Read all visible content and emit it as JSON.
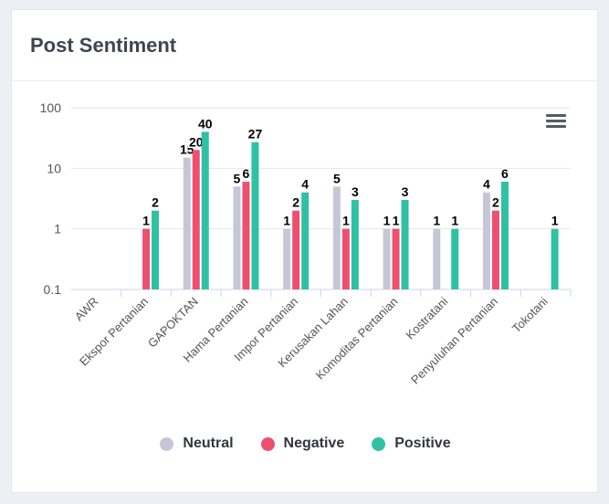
{
  "card": {
    "title": "Post Sentiment"
  },
  "chart_data": {
    "type": "bar",
    "title": "",
    "xlabel": "",
    "ylabel": "",
    "yscale": "log",
    "ylim": [
      0.1,
      100
    ],
    "yticks": [
      0.1,
      1,
      10,
      100
    ],
    "ytick_labels": [
      "0.1",
      "1",
      "10",
      "100"
    ],
    "grid": true,
    "legend_position": "bottom",
    "data_labels": true,
    "categories": [
      "AWR",
      "Ekspor Pertanian",
      "GAPOKTAN",
      "Hama Pertanian",
      "Impor Pertanian",
      "Kerusakan Lahan",
      "Komoditas Pertanian",
      "Kostratani",
      "Penyuluhan Pertanian",
      "Tokotani"
    ],
    "series": [
      {
        "name": "Neutral",
        "color": "#c6c7d6",
        "values": [
          null,
          null,
          15,
          5,
          1,
          5,
          1,
          1,
          4,
          null
        ]
      },
      {
        "name": "Negative",
        "color": "#ee4f6f",
        "values": [
          null,
          1,
          20,
          6,
          2,
          1,
          1,
          null,
          2,
          null
        ]
      },
      {
        "name": "Positive",
        "color": "#2fc1a3",
        "values": [
          null,
          2,
          40,
          27,
          4,
          3,
          3,
          1,
          6,
          1
        ]
      }
    ]
  },
  "menu": {
    "icon": "hamburger-menu-icon"
  }
}
